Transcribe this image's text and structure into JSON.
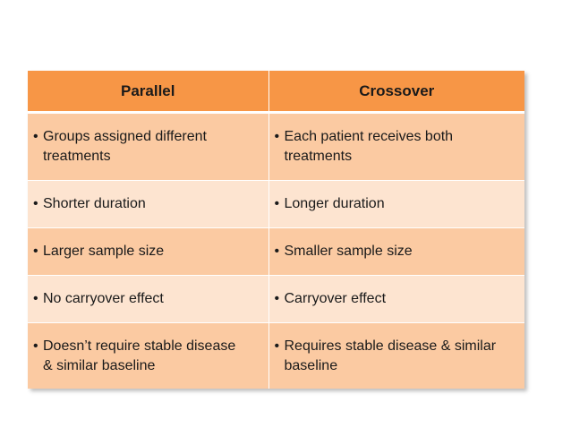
{
  "table": {
    "headers": [
      "Parallel",
      "Crossover"
    ],
    "bullet": "•",
    "rows": [
      [
        "Groups assigned different\ntreatments",
        "Each patient receives both\ntreatments"
      ],
      [
        "Shorter duration",
        "Longer duration"
      ],
      [
        "Larger sample size",
        "Smaller sample size"
      ],
      [
        "No carryover effect",
        "Carryover effect"
      ],
      [
        "Doesn’t  require stable disease\n& similar baseline",
        "Requires stable disease & similar\nbaseline"
      ]
    ]
  },
  "colors": {
    "header": "#f79646",
    "row_dark": "#fbcaa2",
    "row_light": "#fde4d0"
  }
}
